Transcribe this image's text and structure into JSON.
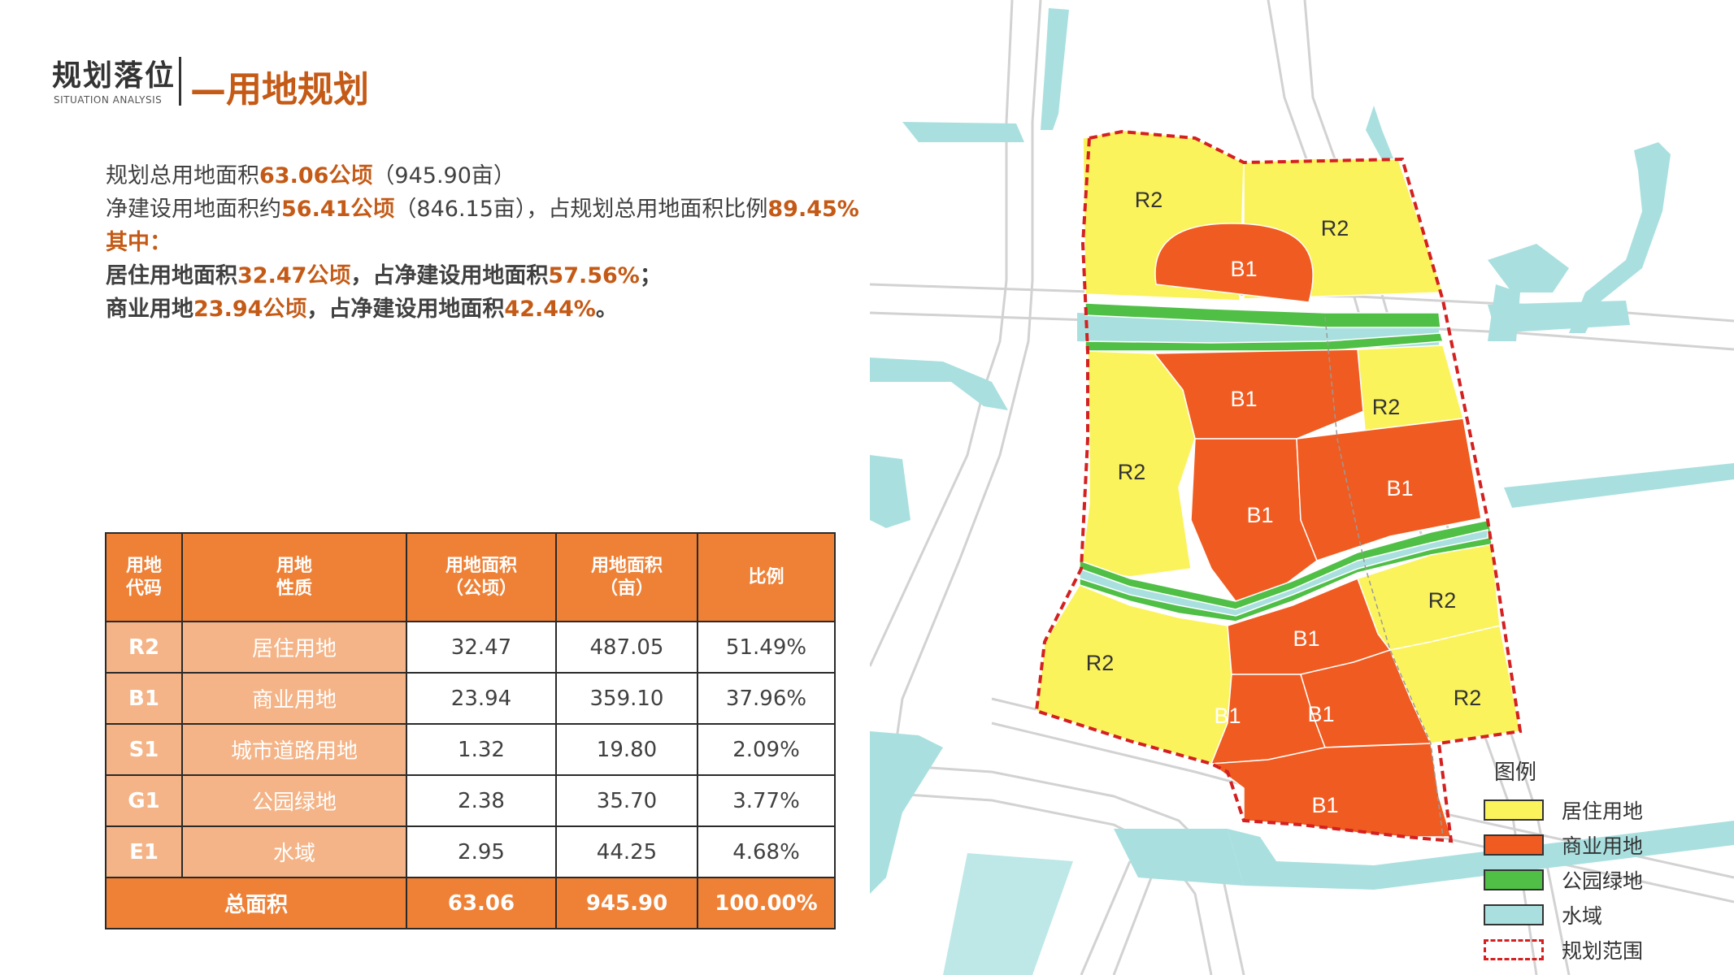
{
  "header": {
    "title": "规划落位",
    "subtitle": "SITUATION ANALYSIS",
    "section": "—用地规划"
  },
  "summary": {
    "line1_a": "规划总用地面积",
    "line1_b": "63.06公顷",
    "line1_c": "（945.90亩）",
    "line2_a": "净建设用地面积约",
    "line2_b": "56.41公顷",
    "line2_c": "（846.15亩），占规划总用地面积比例",
    "line2_d": "89.45%",
    "line3": "其中：",
    "line4_a": "居住用地面积",
    "line4_b": "32.47公顷",
    "line4_c": "，占净建设用地面积",
    "line4_d": "57.56%",
    "line4_e": "；",
    "line5_a": "商业用地",
    "line5_b": "23.94公顷",
    "line5_c": "，占净建设用地面积",
    "line5_d": "42.44%",
    "line5_e": "。"
  },
  "table": {
    "headers": [
      "用地\n代码",
      "用地\n性质",
      "用地面积\n（公顷）",
      "用地面积\n（亩）",
      "比例"
    ],
    "rows": [
      {
        "code": "R2",
        "nature": "居住用地",
        "ha": "32.47",
        "mu": "487.05",
        "ratio": "51.49%"
      },
      {
        "code": "B1",
        "nature": "商业用地",
        "ha": "23.94",
        "mu": "359.10",
        "ratio": "37.96%"
      },
      {
        "code": "S1",
        "nature": "城市道路用地",
        "ha": "1.32",
        "mu": "19.80",
        "ratio": "2.09%"
      },
      {
        "code": "G1",
        "nature": "公园绿地",
        "ha": "2.38",
        "mu": "35.70",
        "ratio": "3.77%"
      },
      {
        "code": "E1",
        "nature": "水域",
        "ha": "2.95",
        "mu": "44.25",
        "ratio": "4.68%"
      }
    ],
    "total": {
      "label": "总面积",
      "ha": "63.06",
      "mu": "945.90",
      "ratio": "100.00%"
    }
  },
  "map": {
    "labels": {
      "r2_a": "R2",
      "r2_b": "R2",
      "b1_top": "B1",
      "b1_mid": "B1",
      "r2_c": "R2",
      "r2_d": "R2",
      "b1_c": "B1",
      "b1_e": "B1",
      "r2_e": "R2",
      "b1_f": "B1",
      "r2_f": "R2",
      "r2_g": "R2",
      "b1_g": "B1",
      "b1_h": "B1",
      "b1_i": "B1"
    },
    "colors": {
      "residential": "#fbf35c",
      "commercial": "#f05b21",
      "park": "#4fbf45",
      "water": "#a9e0df",
      "boundary": "#d42020",
      "road": "#cfcfcf"
    }
  },
  "legend": {
    "title": "图例",
    "items": [
      {
        "label": "居住用地",
        "color": "#fbf35c",
        "icon": "residential-swatch"
      },
      {
        "label": "商业用地",
        "color": "#f05b21",
        "icon": "commercial-swatch"
      },
      {
        "label": "公园绿地",
        "color": "#4fbf45",
        "icon": "park-swatch"
      },
      {
        "label": "水域",
        "color": "#a9e0df",
        "icon": "water-swatch"
      },
      {
        "label": "规划范围",
        "color": "#d42020",
        "icon": "boundary-dashed-swatch"
      }
    ]
  }
}
